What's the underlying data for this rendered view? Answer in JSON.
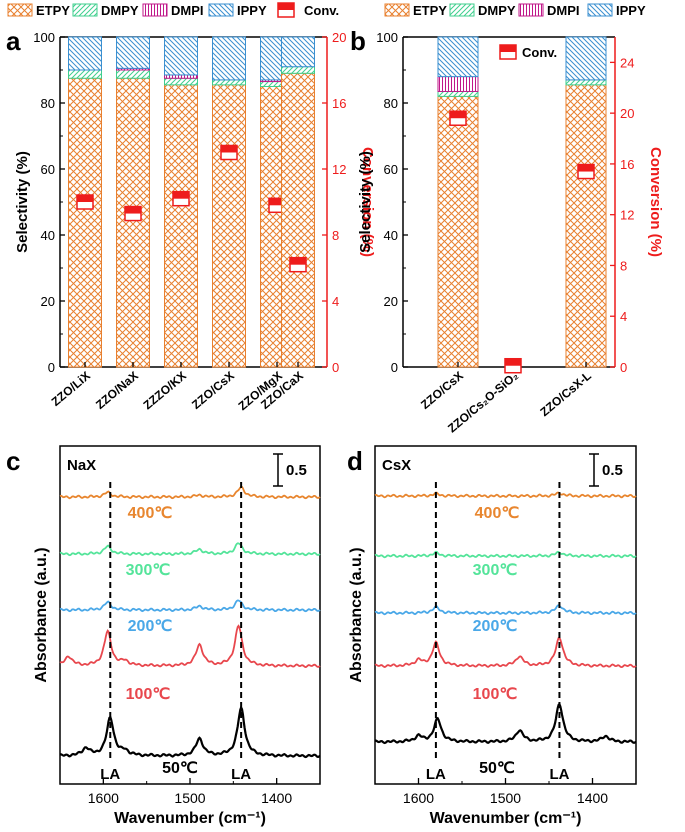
{
  "colors": {
    "etpy": "#e8802f",
    "dmpy": "#3fcf8e",
    "dmpi": "#c0188a",
    "ippy": "#3a8fd0",
    "conv": "#ee1c1c",
    "black": "#000000"
  },
  "chart_data": [
    {
      "panel": "a",
      "type": "bar",
      "stacked": true,
      "categories": [
        "ZZO/LiX",
        "ZZO/NaX",
        "ZZZO/KX",
        "ZZO/CsX",
        "ZZO/MgX",
        "ZZO/CaX"
      ],
      "series": [
        {
          "name": "ETPY",
          "values": [
            87.5,
            87.5,
            85.5,
            85.5,
            85,
            89
          ]
        },
        {
          "name": "DMPY",
          "values": [
            2.5,
            2.5,
            2,
            1.5,
            1.5,
            2
          ]
        },
        {
          "name": "DMPI",
          "values": [
            0,
            0.5,
            1,
            0,
            0.5,
            0
          ]
        },
        {
          "name": "IPPY",
          "values": [
            10,
            9.5,
            11.5,
            13,
            13,
            9
          ]
        }
      ],
      "conversion": {
        "name": "Conv.",
        "values": [
          10,
          9.3,
          10.2,
          13,
          9.8,
          6.2
        ]
      },
      "xlabel": "",
      "ylabel": "Selectivity (%)",
      "y2label": "Conversion (%)",
      "ylim": [
        0,
        100
      ],
      "y2lim": [
        0,
        20
      ],
      "yticks": [
        "0",
        "20",
        "40",
        "60",
        "80",
        "100"
      ],
      "y2ticks": [
        "0",
        "4",
        "8",
        "12",
        "16",
        "20"
      ],
      "legend": [
        "ETPY",
        "DMPY",
        "DMPI",
        "IPPY",
        "Conv."
      ]
    },
    {
      "panel": "b",
      "type": "bar",
      "stacked": true,
      "categories": [
        "ZZO/CsX",
        "ZZO/Cs₂O-SiO₂",
        "ZZO/CsX-L"
      ],
      "series": [
        {
          "name": "ETPY",
          "values": [
            82,
            0,
            85.5
          ]
        },
        {
          "name": "DMPY",
          "values": [
            1.5,
            0,
            1.5
          ]
        },
        {
          "name": "DMPI",
          "values": [
            4.5,
            0,
            0
          ]
        },
        {
          "name": "IPPY",
          "values": [
            12,
            0,
            13
          ]
        }
      ],
      "conversion": {
        "name": "Conv.",
        "values": [
          19.6,
          0.1,
          15.4
        ]
      },
      "ylabel": "Selectivity (%)",
      "y2label": "Conversion (%)",
      "ylim": [
        0,
        100
      ],
      "y2lim": [
        0,
        26
      ],
      "yticks": [
        "0",
        "20",
        "40",
        "60",
        "80",
        "100"
      ],
      "y2ticks": [
        "0",
        "4",
        "8",
        "12",
        "16",
        "20",
        "24"
      ],
      "legend": [
        "ETPY",
        "DMPY",
        "DMPI",
        "IPPY"
      ],
      "inset_legend": "Conv."
    },
    {
      "panel": "c",
      "type": "line",
      "sample_label": "NaX",
      "xlabel": "Wavenumber (cm⁻¹)",
      "ylabel": "Absorbance (a.u.)",
      "xlim": [
        1650,
        1350
      ],
      "xticks": [
        "1600",
        "1500",
        "1400"
      ],
      "scale_bar_label": "0.5",
      "peak_label": "LA",
      "peaks_cm": [
        1592,
        1441
      ],
      "series": [
        {
          "name": "50℃",
          "color": "#000000",
          "peaks": [
            [
              1592,
              1.0
            ],
            [
              1489,
              0.45
            ],
            [
              1441,
              1.25
            ],
            [
              1620,
              0.2
            ],
            [
              1575,
              0.12
            ]
          ]
        },
        {
          "name": "100℃",
          "color": "#e8474d",
          "peaks": [
            [
              1595,
              0.9
            ],
            [
              1489,
              0.55
            ],
            [
              1444,
              1.05
            ],
            [
              1640,
              0.25
            ],
            [
              1575,
              0.12
            ]
          ]
        },
        {
          "name": "200℃",
          "color": "#4aa8e8",
          "peaks": [
            [
              1595,
              0.2
            ],
            [
              1489,
              0.1
            ],
            [
              1444,
              0.25
            ]
          ]
        },
        {
          "name": "300℃",
          "color": "#54e49a",
          "peaks": [
            [
              1595,
              0.2
            ],
            [
              1489,
              0.12
            ],
            [
              1444,
              0.28
            ]
          ]
        },
        {
          "name": "400℃",
          "color": "#e8862f",
          "peaks": [
            [
              1595,
              0.12
            ],
            [
              1489,
              0.05
            ],
            [
              1441,
              0.25
            ]
          ]
        }
      ]
    },
    {
      "panel": "d",
      "type": "line",
      "sample_label": "CsX",
      "xlabel": "Wavenumber (cm⁻¹)",
      "ylabel": "Absorbance (a.u.)",
      "xlim": [
        1650,
        1350
      ],
      "xticks": [
        "1600",
        "1500",
        "1400"
      ],
      "scale_bar_label": "0.5",
      "peak_label": "LA",
      "peaks_cm": [
        1580,
        1438
      ],
      "series": [
        {
          "name": "50℃",
          "color": "#000000",
          "peaks": [
            [
              1578,
              0.6
            ],
            [
              1484,
              0.3
            ],
            [
              1438,
              1.0
            ],
            [
              1385,
              0.15
            ],
            [
              1600,
              0.15
            ]
          ]
        },
        {
          "name": "100℃",
          "color": "#e8474d",
          "peaks": [
            [
              1580,
              0.6
            ],
            [
              1484,
              0.25
            ],
            [
              1438,
              0.75
            ],
            [
              1600,
              0.15
            ]
          ]
        },
        {
          "name": "200℃",
          "color": "#4aa8e8",
          "peaks": [
            [
              1580,
              0.15
            ],
            [
              1438,
              0.2
            ]
          ]
        },
        {
          "name": "300℃",
          "color": "#54e49a",
          "peaks": [
            [
              1580,
              0.08
            ],
            [
              1438,
              0.1
            ]
          ]
        },
        {
          "name": "400℃",
          "color": "#e8862f",
          "peaks": [
            [
              1580,
              0.06
            ],
            [
              1438,
              0.08
            ]
          ]
        }
      ]
    }
  ]
}
